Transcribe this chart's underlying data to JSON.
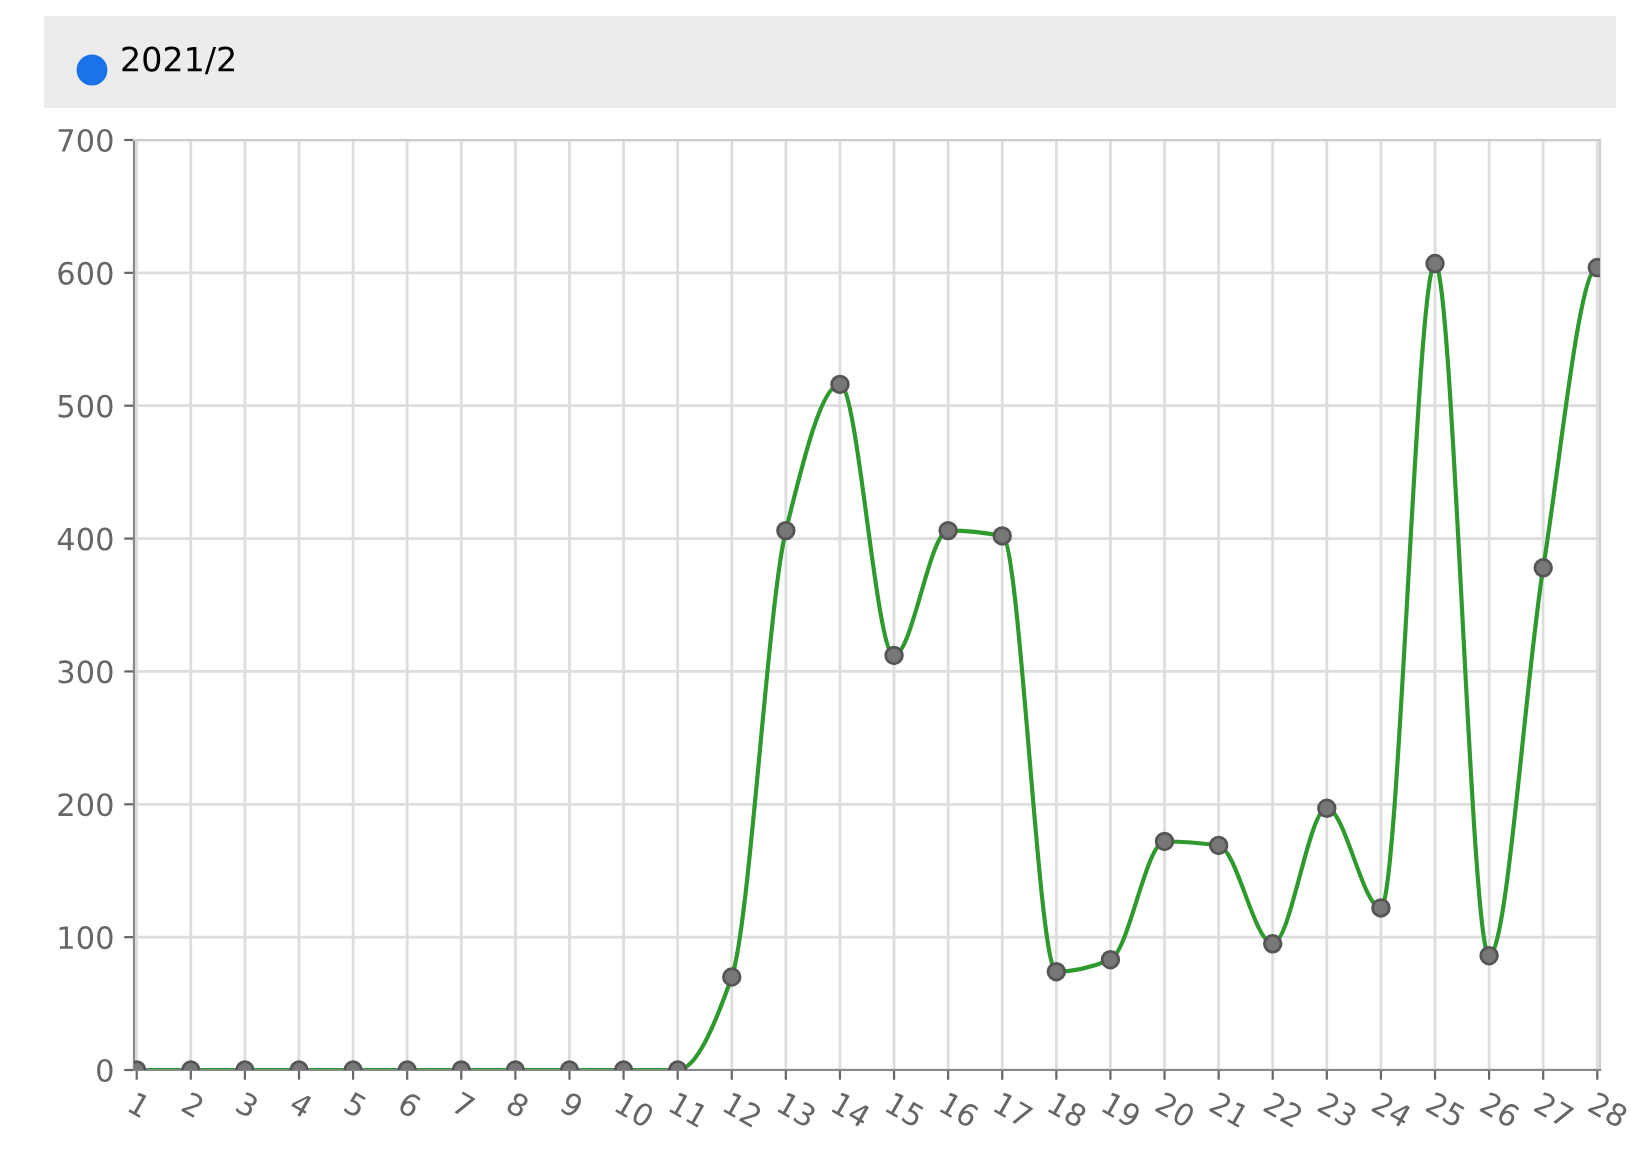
{
  "chart_data": {
    "type": "line",
    "subtitle": "2021/2",
    "categories": [
      "1",
      "2",
      "3",
      "4",
      "5",
      "6",
      "7",
      "8",
      "9",
      "10",
      "11",
      "12",
      "13",
      "14",
      "15",
      "16",
      "17",
      "18",
      "19",
      "20",
      "21",
      "22",
      "23",
      "24",
      "25",
      "26",
      "27",
      "28"
    ],
    "series": [
      {
        "color": "#2e9a2e",
        "values": [
          0,
          0,
          0,
          0,
          0,
          0,
          0,
          0,
          0,
          0,
          0,
          70,
          406,
          516,
          312,
          406,
          402,
          74,
          83,
          172,
          169,
          95,
          197,
          122,
          607,
          86,
          378,
          604
        ]
      }
    ],
    "ylim": [
      0,
      700
    ],
    "yticks": [
      0,
      100,
      200,
      300,
      400,
      500,
      600,
      700
    ],
    "grid": true,
    "marker": "circle",
    "line_style": "solid"
  }
}
